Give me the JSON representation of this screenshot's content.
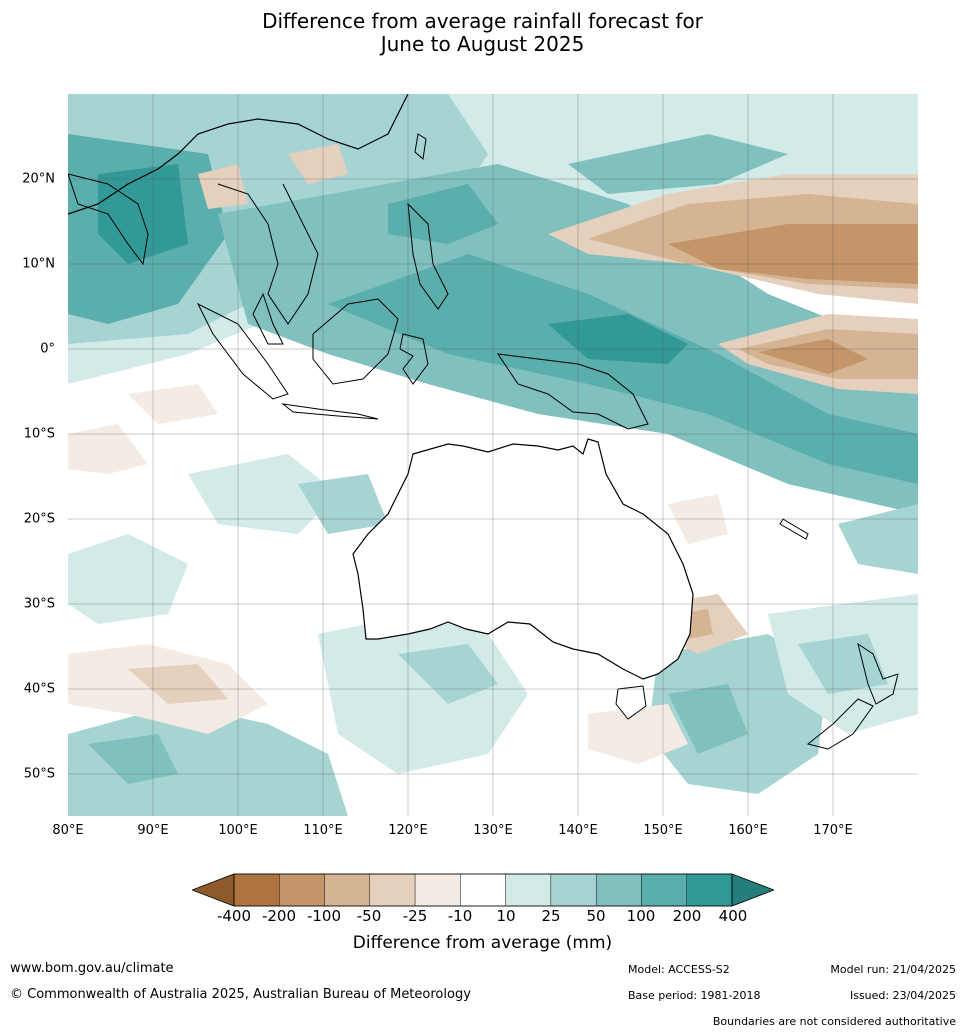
{
  "title": {
    "line1": "Difference from average rainfall forecast for",
    "line2": "June to August 2025"
  },
  "map": {
    "lat_labels": [
      "20°N",
      "10°N",
      "0°",
      "10°S",
      "20°S",
      "30°S",
      "40°S",
      "50°S"
    ],
    "lon_labels": [
      "80°E",
      "90°E",
      "100°E",
      "110°E",
      "120°E",
      "130°E",
      "140°E",
      "150°E",
      "160°E",
      "170°E"
    ],
    "extent": {
      "lon": [
        80,
        180
      ],
      "lat": [
        -55,
        30
      ]
    },
    "gridlines": true
  },
  "colorbar": {
    "labels": [
      "-400",
      "-200",
      "-100",
      "-50",
      "-25",
      "-10",
      "10",
      "25",
      "50",
      "100",
      "200",
      "400"
    ],
    "colors": [
      "#8e5a2b",
      "#ad743e",
      "#c49569",
      "#d4b493",
      "#e5d0bd",
      "#f4ebe4",
      "#ffffff",
      "#d2eae8",
      "#a6d4d3",
      "#80c0bf",
      "#5aaeac",
      "#339996",
      "#257e7b"
    ],
    "title": "Difference from average (mm)"
  },
  "footer": {
    "url": "www.bom.gov.au/climate",
    "copyright": "© Commonwealth of Australia 2025, Australian Bureau of Meteorology",
    "model": "Model: ACCESS-S2",
    "base_period": "Base period: 1981-2018",
    "model_run": "Model run: 21/04/2025",
    "issued": "Issued: 23/04/2025",
    "disclaimer": "Boundaries are not considered authoritative"
  }
}
